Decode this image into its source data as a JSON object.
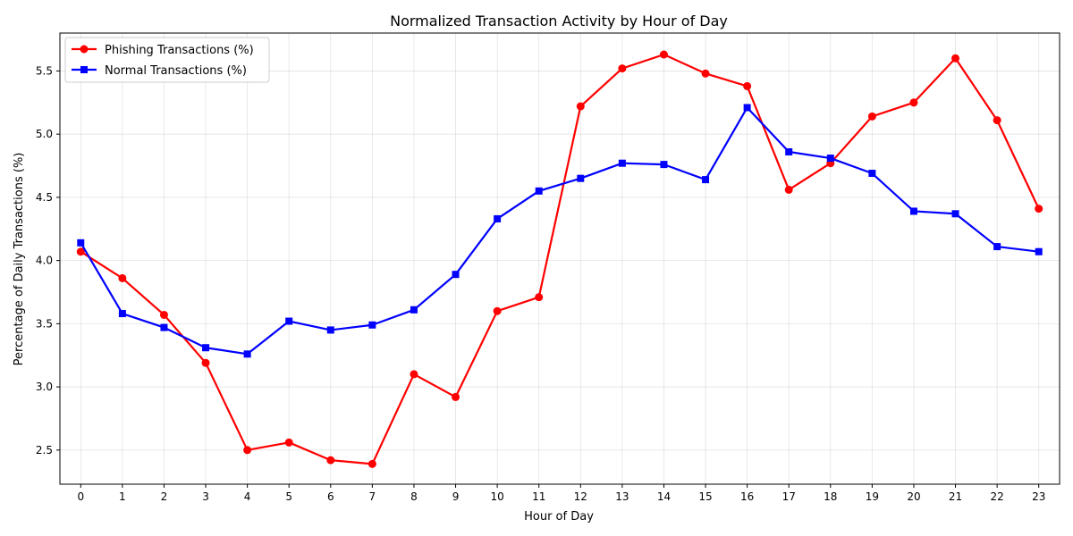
{
  "chart_data": {
    "type": "line",
    "title": "Normalized Transaction Activity by Hour of Day",
    "xlabel": "Hour of Day",
    "ylabel": "Percentage of Daily Transactions (%)",
    "x": [
      0,
      1,
      2,
      3,
      4,
      5,
      6,
      7,
      8,
      9,
      10,
      11,
      12,
      13,
      14,
      15,
      16,
      17,
      18,
      19,
      20,
      21,
      22,
      23
    ],
    "xticks": [
      "0",
      "1",
      "2",
      "3",
      "4",
      "5",
      "6",
      "7",
      "8",
      "9",
      "10",
      "11",
      "12",
      "13",
      "14",
      "15",
      "16",
      "17",
      "18",
      "19",
      "20",
      "21",
      "22",
      "23"
    ],
    "yticks": [
      "2.5",
      "3.0",
      "3.5",
      "4.0",
      "4.5",
      "5.0",
      "5.5"
    ],
    "ylim": [
      2.23,
      5.8
    ],
    "xlim": [
      -0.5,
      23.5
    ],
    "grid": true,
    "legend_position": "top-left",
    "series": [
      {
        "name": "Phishing Transactions (%)",
        "color": "#ff0000",
        "marker": "circle",
        "values": [
          4.07,
          3.86,
          3.57,
          3.19,
          2.5,
          2.56,
          2.42,
          2.39,
          3.1,
          2.92,
          3.6,
          3.71,
          5.22,
          5.52,
          5.63,
          5.48,
          5.38,
          4.56,
          4.77,
          5.14,
          5.25,
          5.6,
          5.11,
          4.41
        ]
      },
      {
        "name": "Normal Transactions (%)",
        "color": "#0000ff",
        "marker": "square",
        "values": [
          4.14,
          3.58,
          3.47,
          3.31,
          3.26,
          3.52,
          3.45,
          3.49,
          3.61,
          3.89,
          4.33,
          4.55,
          4.65,
          4.77,
          4.76,
          4.64,
          5.21,
          4.86,
          4.81,
          4.69,
          4.39,
          4.37,
          4.11,
          4.07
        ]
      }
    ]
  }
}
